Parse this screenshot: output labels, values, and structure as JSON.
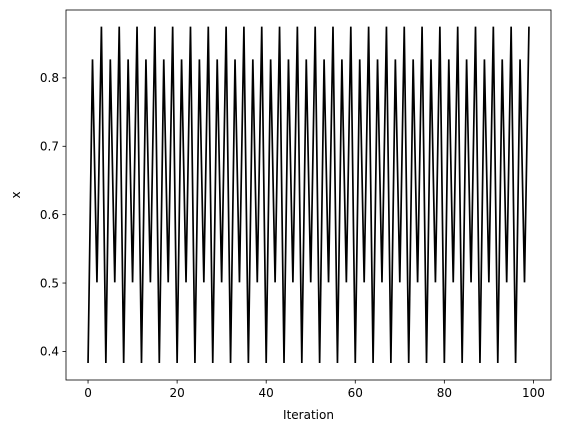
{
  "chart_data": {
    "type": "line",
    "title": "",
    "xlabel": "Iteration",
    "ylabel": "x",
    "xlim": [
      -4.95,
      103.95
    ],
    "ylim": [
      0.3582,
      0.8993
    ],
    "xticks": [
      0,
      20,
      40,
      60,
      80,
      100
    ],
    "xtick_labels": [
      "0",
      "20",
      "40",
      "60",
      "80",
      "100"
    ],
    "yticks": [
      0.4,
      0.5,
      0.6,
      0.7,
      0.8
    ],
    "ytick_labels": [
      "0.4",
      "0.5",
      "0.6",
      "0.7",
      "0.8"
    ],
    "grid": false,
    "legend": "none",
    "series": [
      {
        "color": "#000000",
        "x": [
          0,
          1,
          2,
          3,
          4,
          5,
          6,
          7,
          8,
          9,
          10,
          11,
          12,
          13,
          14,
          15,
          16,
          17,
          18,
          19,
          20,
          21,
          22,
          23,
          24,
          25,
          26,
          27,
          28,
          29,
          30,
          31,
          32,
          33,
          34,
          35,
          36,
          37,
          38,
          39,
          40,
          41,
          42,
          43,
          44,
          45,
          46,
          47,
          48,
          49,
          50,
          51,
          52,
          53,
          54,
          55,
          56,
          57,
          58,
          59,
          60,
          61,
          62,
          63,
          64,
          65,
          66,
          67,
          68,
          69,
          70,
          71,
          72,
          73,
          74,
          75,
          76,
          77,
          78,
          79,
          80,
          81,
          82,
          83,
          84,
          85,
          86,
          87,
          88,
          89,
          90,
          91,
          92,
          93,
          94,
          95,
          96,
          97,
          98,
          99
        ],
        "values": [
          0.383,
          0.827,
          0.501,
          0.875,
          0.383,
          0.827,
          0.501,
          0.875,
          0.383,
          0.827,
          0.501,
          0.875,
          0.383,
          0.827,
          0.501,
          0.875,
          0.383,
          0.827,
          0.501,
          0.875,
          0.383,
          0.827,
          0.501,
          0.875,
          0.383,
          0.827,
          0.501,
          0.875,
          0.383,
          0.827,
          0.501,
          0.875,
          0.383,
          0.827,
          0.501,
          0.875,
          0.383,
          0.827,
          0.501,
          0.875,
          0.383,
          0.827,
          0.501,
          0.875,
          0.383,
          0.827,
          0.501,
          0.875,
          0.383,
          0.827,
          0.501,
          0.875,
          0.383,
          0.827,
          0.501,
          0.875,
          0.383,
          0.827,
          0.501,
          0.875,
          0.383,
          0.827,
          0.501,
          0.875,
          0.383,
          0.827,
          0.501,
          0.875,
          0.383,
          0.827,
          0.501,
          0.875,
          0.383,
          0.827,
          0.501,
          0.875,
          0.383,
          0.827,
          0.501,
          0.875,
          0.383,
          0.827,
          0.501,
          0.875,
          0.383,
          0.827,
          0.501,
          0.875,
          0.383,
          0.827,
          0.501,
          0.875,
          0.383,
          0.827,
          0.501,
          0.875,
          0.383,
          0.827,
          0.501,
          0.875
        ]
      }
    ]
  }
}
